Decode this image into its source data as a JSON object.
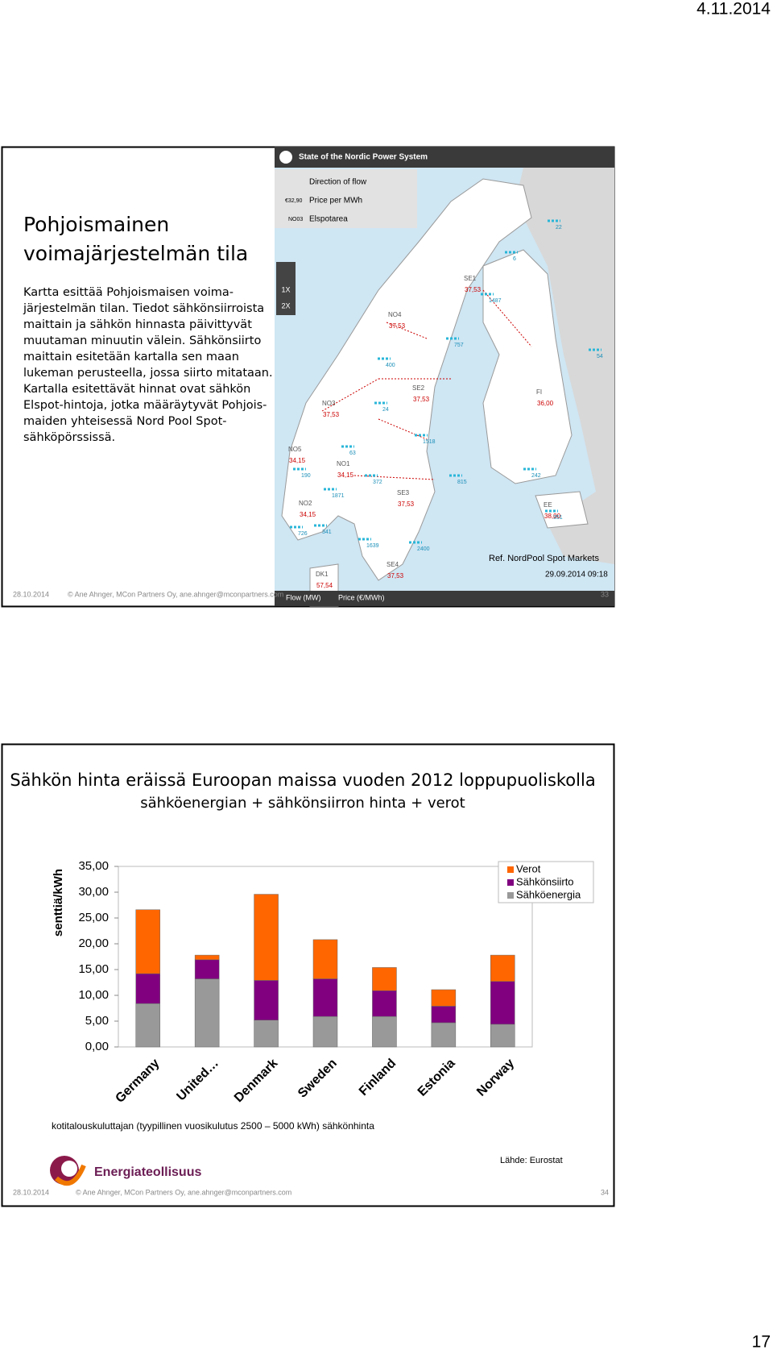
{
  "header": {
    "date": "4.11.2014"
  },
  "slide1": {
    "title_lines": [
      "Pohjoismainen",
      "voimajärjestelmän tila"
    ],
    "body_lines": [
      "Kartta esittää Pohjoismaisen voima-",
      "järjestelmän tilan. Tiedot sähkönsiirroista",
      "maittain ja sähkön hinnasta päivittyvät",
      "muutaman minuutin välein. Sähkönsiirto",
      "maittain esitetään kartalla sen maan",
      "lukeman perusteella, jossa siirto mitataan.",
      "Kartalla esitettävät hinnat ovat sähkön",
      "Elspot-hintoja, jotka määräytyvät Pohjois-",
      "maiden yhteisessä Nord Pool Spot-",
      "sähköpörssissä."
    ],
    "map": {
      "title": "State of the Nordic Power System",
      "legend": [
        "Direction of flow",
        "Price per MWh",
        "Elspotarea"
      ],
      "legend_samples": [
        "€32,90",
        "NO03"
      ],
      "zoom": [
        "1X",
        "2X"
      ],
      "areas": [
        {
          "code": "SE1",
          "price": "37,53"
        },
        {
          "code": "NO4",
          "price": "37,53"
        },
        {
          "code": "SE2",
          "price": "37,53"
        },
        {
          "code": "FI",
          "price": "36,00"
        },
        {
          "code": "NO3",
          "price": "37,53"
        },
        {
          "code": "NO5",
          "price": "34,15"
        },
        {
          "code": "NO1",
          "price": "34,15"
        },
        {
          "code": "NO2",
          "price": "34,15"
        },
        {
          "code": "SE3",
          "price": "37,53"
        },
        {
          "code": "EE",
          "price": "38,00"
        },
        {
          "code": "SE4",
          "price": "37,53"
        },
        {
          "code": "DK1",
          "price": "57,54"
        }
      ],
      "flows": [
        "22",
        "6",
        "1487",
        "757",
        "400",
        "24",
        "63",
        "190",
        "1871",
        "372",
        "1518",
        "815",
        "242",
        "351",
        "341",
        "726",
        "1639",
        "2400",
        "54"
      ],
      "reference": "Ref. NordPool Spot Markets",
      "timestamp": "29.09.2014 09:18",
      "toggles": [
        "Flow (MW)",
        "Price (€/MWh)"
      ]
    },
    "footer": {
      "date": "28.10.2014",
      "author": "© Ane Ahnger, MCon Partners Oy, ane.ahnger@mconpartners.com",
      "number": "33"
    }
  },
  "slide2": {
    "chart": {
      "type": "bar",
      "stacked": true,
      "title": "Sähkön hinta eräissä Euroopan maissa vuoden 2012 loppupuoliskolla",
      "subtitle": "sähköenergian + sähkönsiirron hinta + verot",
      "y_label": "senttiä/kWh",
      "categories": [
        "Germany",
        "United…",
        "Denmark",
        "Sweden",
        "Finland",
        "Estonia",
        "Norway"
      ],
      "series": [
        {
          "name": "Sähköenergia",
          "color": "#999999",
          "values": [
            8.4,
            13.2,
            5.2,
            5.9,
            5.9,
            4.7,
            4.4
          ]
        },
        {
          "name": "Sähkönsiirto",
          "color": "#800080",
          "values": [
            5.8,
            3.7,
            7.7,
            7.3,
            5.0,
            3.2,
            8.3
          ]
        },
        {
          "name": "Verot",
          "color": "#ff6600",
          "values": [
            12.4,
            0.9,
            16.7,
            7.6,
            4.5,
            3.2,
            5.1
          ]
        }
      ],
      "ylim": [
        0,
        35
      ],
      "yticks": [
        {
          "value": 0,
          "label": "0,00"
        },
        {
          "value": 5,
          "label": "5,00"
        },
        {
          "value": 10,
          "label": "10,00"
        },
        {
          "value": 15,
          "label": "15,00"
        },
        {
          "value": 20,
          "label": "20,00"
        },
        {
          "value": 25,
          "label": "25,00"
        },
        {
          "value": 30,
          "label": "30,00"
        },
        {
          "value": 35,
          "label": "35,00"
        }
      ],
      "grid": false
    },
    "note": "kotitalouskuluttajan (tyypillinen vuosikulutus 2500 – 5000 kWh) sähkönhinta",
    "source": "Lähde: Eurostat",
    "logo": "Energiateollisuus",
    "footer": {
      "date": "28.10.2014",
      "author": "© Ane Ahnger, MCon Partners Oy, ane.ahnger@mconpartners.com",
      "number": "34"
    }
  },
  "page_number": "17"
}
